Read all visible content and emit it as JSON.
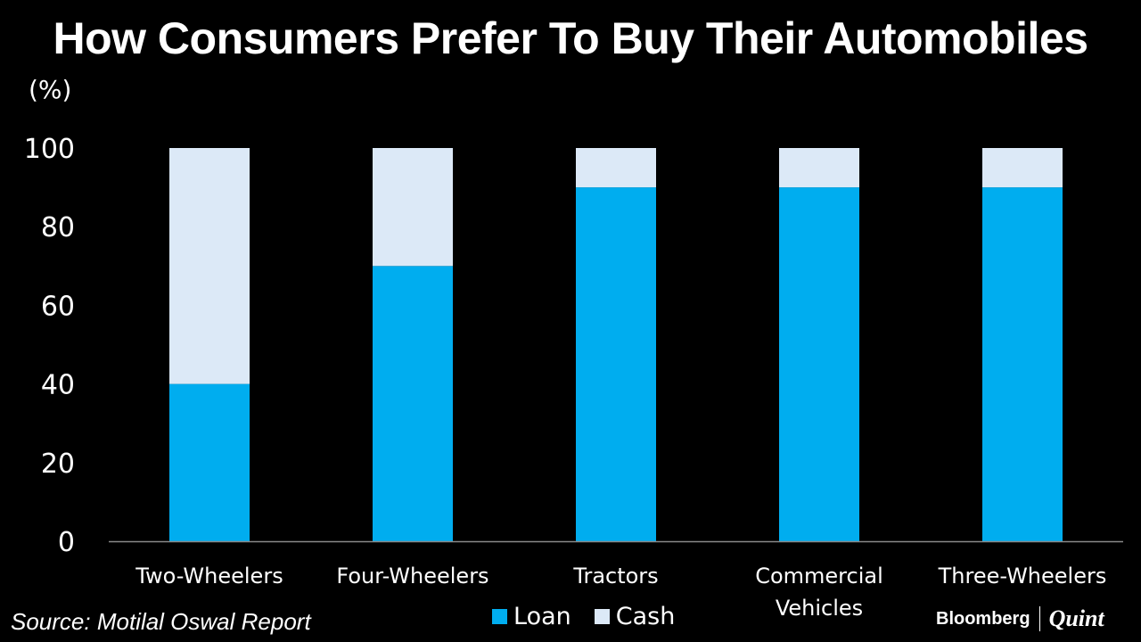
{
  "title": "How Consumers Prefer To Buy Their Automobiles",
  "unit_label": "(%)",
  "source": "Source: Motilal Oswal Report",
  "brand": {
    "primary": "Bloomberg",
    "secondary": "Quint"
  },
  "colors": {
    "background": "#000000",
    "loan": "#00adef",
    "cash": "#dce9f7",
    "text": "#ffffff"
  },
  "legend": [
    {
      "label": "Loan",
      "color": "#00adef"
    },
    {
      "label": "Cash",
      "color": "#dce9f7"
    }
  ],
  "chart_data": {
    "type": "bar",
    "stacked": true,
    "title": "How Consumers Prefer To Buy Their Automobiles",
    "ylabel": "(%)",
    "ylim": [
      0,
      100
    ],
    "yticks": [
      0,
      20,
      40,
      60,
      80,
      100
    ],
    "categories": [
      [
        "Two-Wheelers"
      ],
      [
        "Four-Wheelers"
      ],
      [
        "Tractors"
      ],
      [
        "Commercial",
        "Vehicles"
      ],
      [
        "Three-Wheelers"
      ]
    ],
    "series": [
      {
        "name": "Loan",
        "color": "#00adef",
        "values": [
          40,
          70,
          90,
          90,
          90
        ]
      },
      {
        "name": "Cash",
        "color": "#dce9f7",
        "values": [
          60,
          30,
          10,
          10,
          10
        ]
      }
    ],
    "grid": false,
    "legend_position": "bottom"
  }
}
